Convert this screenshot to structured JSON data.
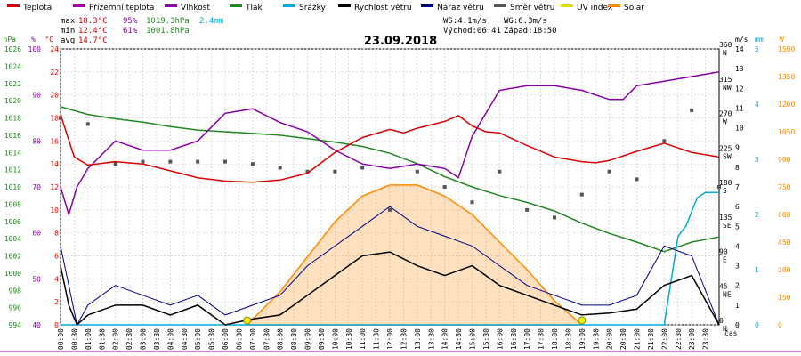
{
  "chart_data": {
    "type": "line",
    "title": "23.09.2018",
    "legend": [
      {
        "name": "Teplota",
        "color": "#dd0000"
      },
      {
        "name": "Přízemní teplota",
        "color": "#aa00aa"
      },
      {
        "name": "Vlhkost",
        "color": "#8800aa"
      },
      {
        "name": "Tlak",
        "color": "#228822"
      },
      {
        "name": "Srážky",
        "color": "#00aadd"
      },
      {
        "name": "Rychlost větru",
        "color": "#000000"
      },
      {
        "name": "Náraz větru",
        "color": "#000088"
      },
      {
        "name": "Směr větru",
        "color": "#555555"
      },
      {
        "name": "UV index",
        "color": "#dddd00"
      },
      {
        "name": "Solar",
        "color": "#ff8800"
      }
    ],
    "stats": {
      "max_label": "max",
      "min_label": "min",
      "avg_label": "avg",
      "max_temp": "18.3°C",
      "max_hum": "95%",
      "max_press": "1019.3hPa",
      "max_rain": "2.4mm",
      "min_temp": "12.4°C",
      "min_hum": "61%",
      "min_press": "1001.8hPa",
      "avg_temp": "14.7°C",
      "ws": "WS:4.1m/s",
      "wg": "WG:6.3m/s",
      "sunrise": "Východ:06:41",
      "sunset": "Západ:18:50"
    },
    "axes": {
      "hpa": {
        "label": "hPa",
        "min": 994,
        "max": 1026,
        "step": 2,
        "color": "#228822"
      },
      "pct": {
        "label": "%",
        "min": 40,
        "max": 100,
        "step": 10,
        "color": "#8800aa"
      },
      "degc": {
        "label": "°C",
        "min": 0,
        "max": 24,
        "step": 2,
        "color": "#dd0000"
      },
      "ms": {
        "label": "m/s",
        "min": 0,
        "max": 14,
        "step": 1,
        "color": "#000000"
      },
      "dir": {
        "labels": [
          "N",
          "NE",
          "E",
          "SE",
          "S",
          "SW",
          "W",
          "NW",
          "N"
        ],
        "values": [
          0,
          45,
          90,
          135,
          180,
          225,
          270,
          315,
          360
        ],
        "color": "#000000"
      },
      "mm": {
        "label": "mm",
        "min": 0,
        "max": 5,
        "step": 1,
        "color": "#00aadd"
      },
      "w": {
        "label": "W",
        "min": 0,
        "max": 1500,
        "step": 150,
        "color": "#ff8800"
      },
      "x_label": "čas",
      "x_ticks": [
        "00:00",
        "00:30",
        "01:00",
        "01:30",
        "02:00",
        "02:30",
        "03:00",
        "03:30",
        "04:00",
        "04:30",
        "05:00",
        "05:30",
        "06:00",
        "06:30",
        "07:00",
        "07:30",
        "08:00",
        "08:30",
        "09:00",
        "09:30",
        "10:00",
        "10:30",
        "11:00",
        "11:30",
        "12:00",
        "12:30",
        "13:00",
        "13:30",
        "14:00",
        "14:30",
        "15:00",
        "15:30",
        "16:00",
        "16:30",
        "17:00",
        "17:30",
        "18:00",
        "18:30",
        "19:00",
        "19:30",
        "20:00",
        "20:30",
        "21:00",
        "21:30",
        "22:00",
        "22:30",
        "23:00",
        "23:30"
      ]
    },
    "series": [
      {
        "name": "Teplota",
        "unit": "°C",
        "color": "#dd0000",
        "x": [
          0,
          0.5,
          1,
          2,
          3,
          4,
          5,
          6,
          7,
          8,
          9,
          10,
          11,
          12,
          12.5,
          13,
          14,
          14.5,
          15,
          15.5,
          16,
          17,
          18,
          19,
          19.5,
          20,
          21,
          22,
          23,
          24
        ],
        "y": [
          18.3,
          14.6,
          13.9,
          14.2,
          14.0,
          13.4,
          12.8,
          12.5,
          12.4,
          12.6,
          13.2,
          15.0,
          16.3,
          17.0,
          16.7,
          17.1,
          17.7,
          18.2,
          17.3,
          16.8,
          16.7,
          15.6,
          14.6,
          14.2,
          14.1,
          14.3,
          15.1,
          15.8,
          15.0,
          14.6
        ]
      },
      {
        "name": "Vlhkost",
        "unit": "%",
        "color": "#8800aa",
        "x": [
          0,
          0.3,
          0.6,
          1,
          2,
          3,
          4,
          5,
          6,
          7,
          8,
          9,
          10,
          11,
          12,
          13,
          14,
          14.5,
          15,
          16,
          17,
          18,
          19,
          20,
          20.5,
          21,
          22,
          23,
          24
        ],
        "y": [
          70,
          64,
          70,
          74,
          80,
          78,
          78,
          80,
          86,
          87,
          84,
          82,
          78,
          75,
          74,
          75,
          74,
          72,
          81,
          91,
          92,
          92,
          91,
          89,
          89,
          92,
          93,
          94,
          95
        ]
      },
      {
        "name": "Tlak",
        "unit": "hPa",
        "color": "#228822",
        "x": [
          0,
          1,
          2,
          3,
          4,
          5,
          6,
          7,
          8,
          9,
          10,
          11,
          12,
          13,
          14,
          15,
          16,
          17,
          18,
          19,
          20,
          21,
          22,
          23,
          24
        ],
        "y": [
          1019.3,
          1018.4,
          1017.9,
          1017.5,
          1017.0,
          1016.6,
          1016.4,
          1016.2,
          1016.0,
          1015.6,
          1015.2,
          1014.7,
          1013.9,
          1012.7,
          1011.2,
          1010.0,
          1009.0,
          1008.2,
          1007.2,
          1005.8,
          1004.6,
          1003.6,
          1002.5,
          1003.6,
          1004.2
        ]
      },
      {
        "name": "Srážky",
        "unit": "mm",
        "color": "#00aadd",
        "x": [
          0,
          22.0,
          22.5,
          22.8,
          23.2,
          23.5,
          24
        ],
        "y": [
          0,
          0,
          1.6,
          1.8,
          2.3,
          2.4,
          2.4
        ]
      },
      {
        "name": "Rychlost větru",
        "unit": "m/s",
        "color": "#000000",
        "x": [
          0,
          0.3,
          0.6,
          1,
          2,
          3,
          4,
          5,
          6,
          7,
          8,
          9,
          10,
          11,
          12,
          13,
          14,
          15,
          16,
          17,
          18,
          19,
          20,
          21,
          22,
          23,
          24
        ],
        "y": [
          3,
          1,
          0,
          0.5,
          1,
          1,
          0.5,
          1,
          0,
          0.3,
          0.5,
          1.5,
          2.5,
          3.5,
          3.7,
          3,
          2.5,
          3,
          2,
          1.5,
          1,
          0.5,
          0.6,
          0.8,
          2,
          2.5,
          0
        ]
      },
      {
        "name": "Náraz větru",
        "unit": "m/s",
        "color": "#000088",
        "x": [
          0,
          0.3,
          0.6,
          1,
          2,
          3,
          4,
          5,
          6,
          7,
          8,
          9,
          10,
          11,
          12,
          13,
          14,
          15,
          16,
          17,
          18,
          19,
          20,
          21,
          22,
          23,
          24
        ],
        "y": [
          4,
          2,
          0,
          1,
          2,
          1.5,
          1,
          1.5,
          0.5,
          1,
          1.5,
          3,
          4,
          5,
          6,
          5,
          4.5,
          4,
          3,
          2,
          1.5,
          1,
          1,
          1.5,
          4,
          3.5,
          0
        ]
      },
      {
        "name": "Směr větru",
        "unit": "°",
        "color": "#555555",
        "x": [
          0,
          1,
          2,
          3,
          4,
          5,
          6,
          7,
          8,
          9,
          10,
          11,
          12,
          13,
          14,
          15,
          16,
          17,
          18,
          19,
          20,
          21,
          22,
          23,
          24
        ],
        "y": [
          270,
          262,
          210,
          213,
          213,
          213,
          213,
          210,
          205,
          200,
          200,
          205,
          150,
          200,
          180,
          160,
          200,
          150,
          140,
          170,
          200,
          190,
          240,
          280,
          180
        ]
      },
      {
        "name": "UV index",
        "unit": "",
        "color": "#dddd00",
        "x": [
          6.8,
          19.0
        ],
        "y": [
          0,
          0
        ]
      },
      {
        "name": "Solar",
        "unit": "W",
        "color": "#ff8800",
        "x": [
          6.8,
          8,
          9,
          10,
          11,
          12,
          13,
          14,
          15,
          16,
          17,
          18,
          19
        ],
        "y": [
          0,
          180,
          370,
          560,
          700,
          760,
          760,
          700,
          600,
          450,
          300,
          130,
          0
        ]
      }
    ],
    "xlim": [
      0,
      24
    ],
    "grid": true
  }
}
